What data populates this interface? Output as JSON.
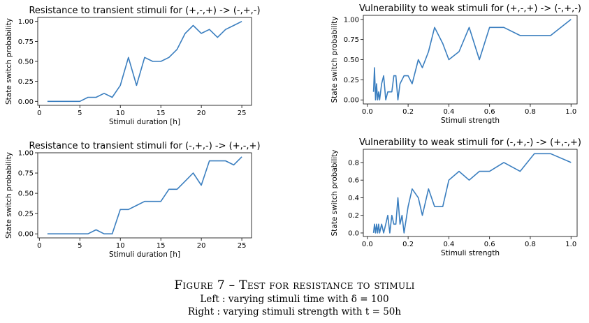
{
  "chart_data": [
    {
      "type": "line",
      "title": "Resistance to transient stimuli for (+,-,+) -> (-,+,-)",
      "xlabel": "Stimuli duration [h]",
      "ylabel": "State switch probability",
      "xlim": [
        -0.2,
        26.2
      ],
      "ylim": [
        -0.05,
        1.05
      ],
      "xticks": [
        0,
        5,
        10,
        15,
        20,
        25
      ],
      "yticks": [
        0.0,
        0.25,
        0.5,
        0.75,
        1.0
      ],
      "ytick_labels": [
        "0.00",
        "0.25",
        "0.50",
        "0.75",
        "1.00"
      ],
      "grid": false,
      "series": [
        {
          "x": [
            1,
            2,
            3,
            4,
            5,
            6,
            7,
            8,
            9,
            10,
            11,
            12,
            13,
            14,
            15,
            16,
            17,
            18,
            19,
            20,
            21,
            22,
            23,
            24,
            25
          ],
          "y": [
            0,
            0,
            0,
            0,
            0,
            0.05,
            0.05,
            0.1,
            0.05,
            0.2,
            0.55,
            0.2,
            0.55,
            0.5,
            0.5,
            0.55,
            0.65,
            0.85,
            0.95,
            0.85,
            0.9,
            0.8,
            0.9,
            0.95,
            1.0
          ]
        }
      ]
    },
    {
      "type": "line",
      "title": "Vulnerability to weak stimuli for (+,-,+) -> (-,+,-)",
      "xlabel": "Stimuli strength",
      "ylabel": "State switch probability",
      "xlim": [
        -0.02,
        1.03
      ],
      "ylim": [
        -0.05,
        1.05
      ],
      "xticks": [
        0.0,
        0.2,
        0.4,
        0.6,
        0.8,
        1.0
      ],
      "yticks": [
        0.0,
        0.25,
        0.5,
        0.75,
        1.0
      ],
      "ytick_labels": [
        "0.00",
        "0.25",
        "0.50",
        "0.75",
        "1.00"
      ],
      "grid": false,
      "series": [
        {
          "x": [
            0.03,
            0.035,
            0.04,
            0.045,
            0.05,
            0.055,
            0.06,
            0.07,
            0.08,
            0.09,
            0.1,
            0.12,
            0.13,
            0.14,
            0.15,
            0.16,
            0.18,
            0.2,
            0.22,
            0.25,
            0.27,
            0.3,
            0.33,
            0.37,
            0.4,
            0.45,
            0.5,
            0.55,
            0.6,
            0.67,
            0.75,
            0.82,
            0.9,
            1.0
          ],
          "y": [
            0.1,
            0.4,
            0.0,
            0.2,
            0.0,
            0.1,
            0.0,
            0.2,
            0.3,
            0.0,
            0.1,
            0.1,
            0.3,
            0.3,
            0.0,
            0.2,
            0.3,
            0.3,
            0.2,
            0.5,
            0.4,
            0.6,
            0.9,
            0.7,
            0.5,
            0.6,
            0.9,
            0.5,
            0.9,
            0.9,
            0.8,
            0.8,
            0.8,
            1.0
          ]
        }
      ]
    },
    {
      "type": "line",
      "title": "Resistance to transient stimuli for (-,+,-) -> (+,-,+)",
      "xlabel": "Stimuli duration [h]",
      "ylabel": "State switch probability",
      "xlim": [
        -0.2,
        26.2
      ],
      "ylim": [
        -0.05,
        1.0
      ],
      "xticks": [
        0,
        5,
        10,
        15,
        20,
        25
      ],
      "yticks": [
        0.0,
        0.25,
        0.5,
        0.75,
        1.0
      ],
      "ytick_labels": [
        "0.00",
        "0.25",
        "0.50",
        "0.75",
        "1.00"
      ],
      "grid": false,
      "series": [
        {
          "x": [
            1,
            2,
            3,
            4,
            5,
            6,
            7,
            8,
            9,
            10,
            11,
            12,
            13,
            14,
            15,
            16,
            17,
            18,
            19,
            20,
            21,
            22,
            23,
            24,
            25
          ],
          "y": [
            0,
            0,
            0,
            0,
            0,
            0,
            0.05,
            0,
            0,
            0.3,
            0.3,
            0.35,
            0.4,
            0.4,
            0.4,
            0.55,
            0.55,
            0.65,
            0.75,
            0.6,
            0.9,
            0.9,
            0.9,
            0.85,
            0.95
          ]
        }
      ]
    },
    {
      "type": "line",
      "title": "Vulnerability to weak stimuli for (-,+,-) -> (+,-,+)",
      "xlabel": "Stimuli strength",
      "ylabel": "State switch probability",
      "xlim": [
        -0.02,
        1.03
      ],
      "ylim": [
        -0.04,
        0.95
      ],
      "xticks": [
        0.0,
        0.2,
        0.4,
        0.6,
        0.8,
        1.0
      ],
      "yticks": [
        0.0,
        0.2,
        0.4,
        0.6,
        0.8
      ],
      "ytick_labels": [
        "0.0",
        "0.2",
        "0.4",
        "0.6",
        "0.8"
      ],
      "grid": false,
      "series": [
        {
          "x": [
            0.03,
            0.035,
            0.04,
            0.045,
            0.05,
            0.055,
            0.06,
            0.07,
            0.08,
            0.09,
            0.1,
            0.11,
            0.12,
            0.13,
            0.14,
            0.15,
            0.16,
            0.17,
            0.18,
            0.2,
            0.22,
            0.25,
            0.27,
            0.3,
            0.33,
            0.37,
            0.4,
            0.45,
            0.5,
            0.55,
            0.6,
            0.67,
            0.75,
            0.82,
            0.9,
            1.0
          ],
          "y": [
            0.0,
            0.1,
            0.0,
            0.1,
            0.0,
            0.1,
            0.0,
            0.1,
            0.0,
            0.1,
            0.2,
            0.0,
            0.2,
            0.1,
            0.1,
            0.4,
            0.1,
            0.2,
            0.0,
            0.3,
            0.5,
            0.4,
            0.2,
            0.5,
            0.3,
            0.3,
            0.6,
            0.7,
            0.6,
            0.7,
            0.7,
            0.8,
            0.7,
            0.9,
            0.9,
            0.8
          ]
        }
      ]
    }
  ],
  "caption": {
    "title": "Figure 7 – Test for resistance to stimuli",
    "line1": "Left : varying stimuli time with δ = 100",
    "line2": "Right : varying stimuli strength with t = 50h"
  },
  "colors": {
    "series": "#3a7ebf",
    "axes": "#000000",
    "background": "#ffffff"
  }
}
